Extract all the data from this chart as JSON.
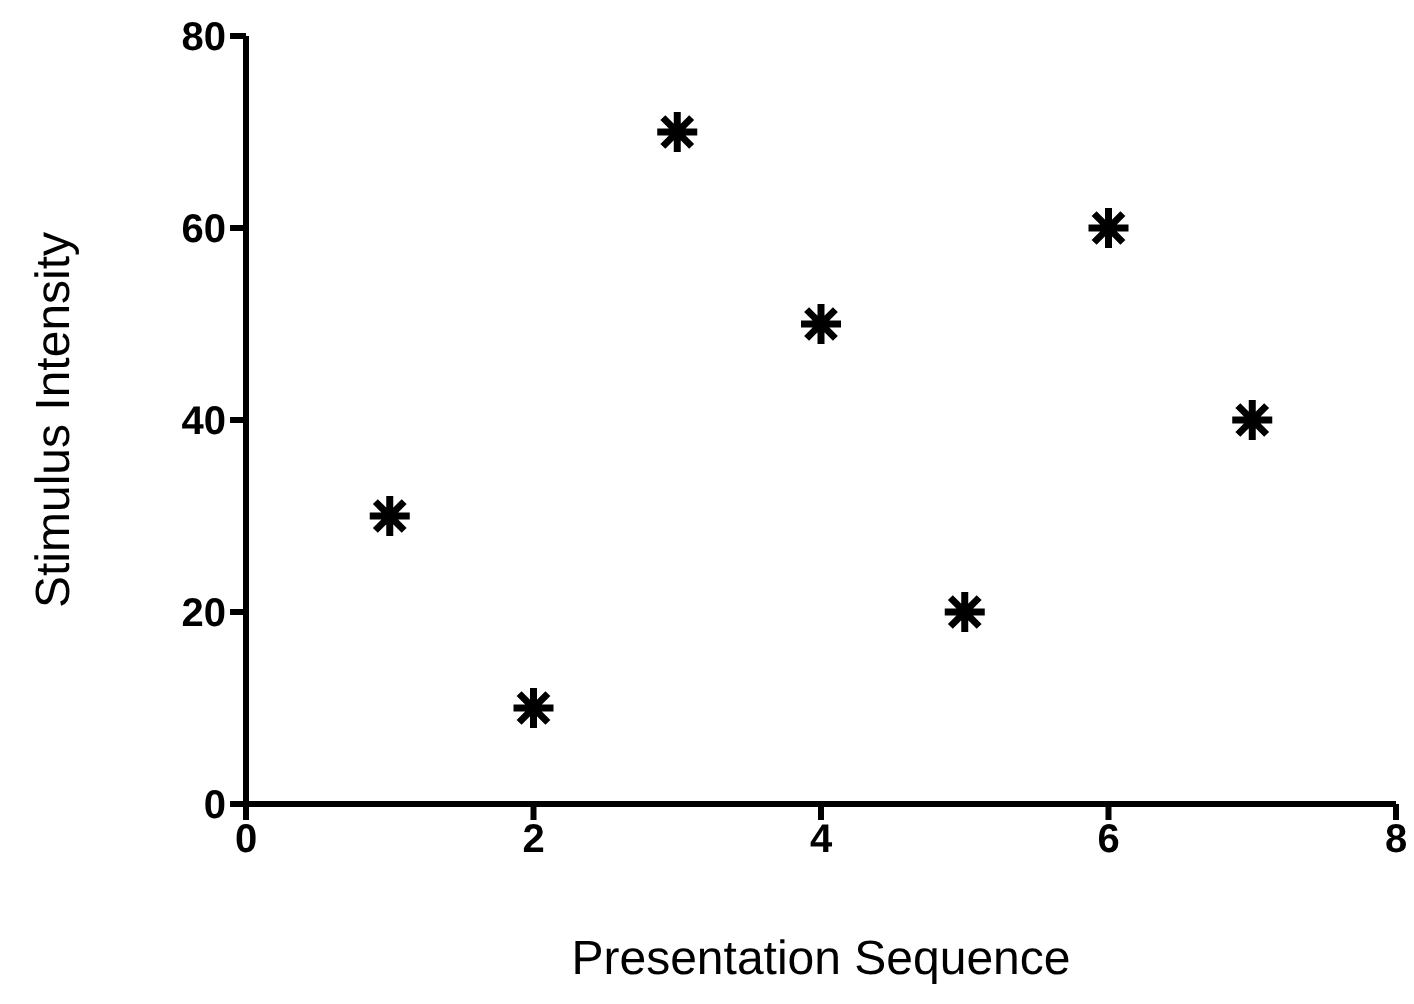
{
  "chart_data": {
    "type": "scatter",
    "xlabel": "Presentation Sequence",
    "ylabel": "Stimulus Intensity",
    "x": [
      1,
      2,
      3,
      4,
      5,
      6,
      7
    ],
    "series": [
      {
        "color": "#000000",
        "values": [
          30,
          10,
          70,
          50,
          20,
          60,
          40
        ]
      }
    ],
    "xlim": [
      0,
      8
    ],
    "xticks": [
      0,
      2,
      4,
      6,
      8
    ],
    "ylim": [
      0,
      80
    ],
    "yticks": [
      0,
      20,
      40,
      60,
      80
    ],
    "marker": "cross",
    "grid": false,
    "legend": false
  }
}
